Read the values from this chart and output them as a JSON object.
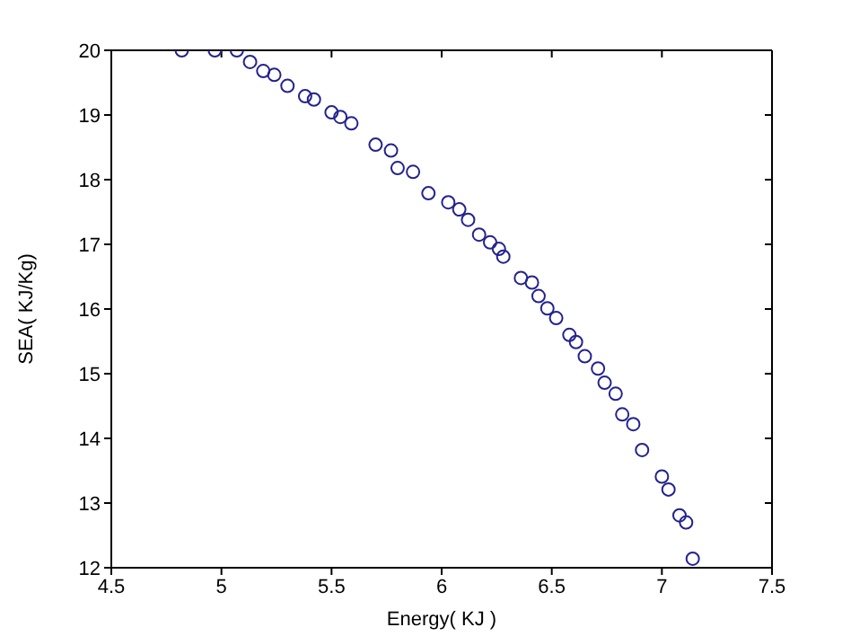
{
  "chart_data": {
    "type": "scatter",
    "xlabel": "Energy( KJ )",
    "ylabel": "SEA( KJ/Kg)",
    "xlim": [
      4.5,
      7.5
    ],
    "xticks": [
      4.5,
      5,
      5.5,
      6,
      6.5,
      7,
      7.5
    ],
    "ylim": [
      12,
      20
    ],
    "yticks": [
      12,
      13,
      14,
      15,
      16,
      17,
      18,
      19,
      20
    ],
    "marker": "circle",
    "x": [
      4.82,
      4.97,
      5.07,
      5.13,
      5.19,
      5.24,
      5.3,
      5.38,
      5.42,
      5.5,
      5.54,
      5.59,
      5.7,
      5.77,
      5.8,
      5.87,
      5.94,
      6.03,
      6.08,
      6.12,
      6.17,
      6.22,
      6.26,
      6.28,
      6.36,
      6.41,
      6.44,
      6.48,
      6.52,
      6.58,
      6.61,
      6.65,
      6.71,
      6.74,
      6.79,
      6.82,
      6.87,
      6.91,
      7.0,
      7.03,
      7.08,
      7.11,
      7.14
    ],
    "series": [
      {
        "color": "#23238e",
        "values": [
          20,
          20,
          20,
          19.82,
          19.68,
          19.62,
          19.45,
          19.29,
          19.24,
          19.04,
          18.97,
          18.87,
          18.54,
          18.45,
          18.18,
          18.12,
          17.79,
          17.65,
          17.54,
          17.38,
          17.15,
          17.03,
          16.93,
          16.81,
          16.48,
          16.41,
          16.2,
          16.01,
          15.86,
          15.6,
          15.49,
          15.27,
          15.08,
          14.86,
          14.69,
          14.37,
          14.22,
          13.82,
          13.41,
          13.21,
          12.81,
          12.7,
          12.14
        ]
      }
    ]
  }
}
